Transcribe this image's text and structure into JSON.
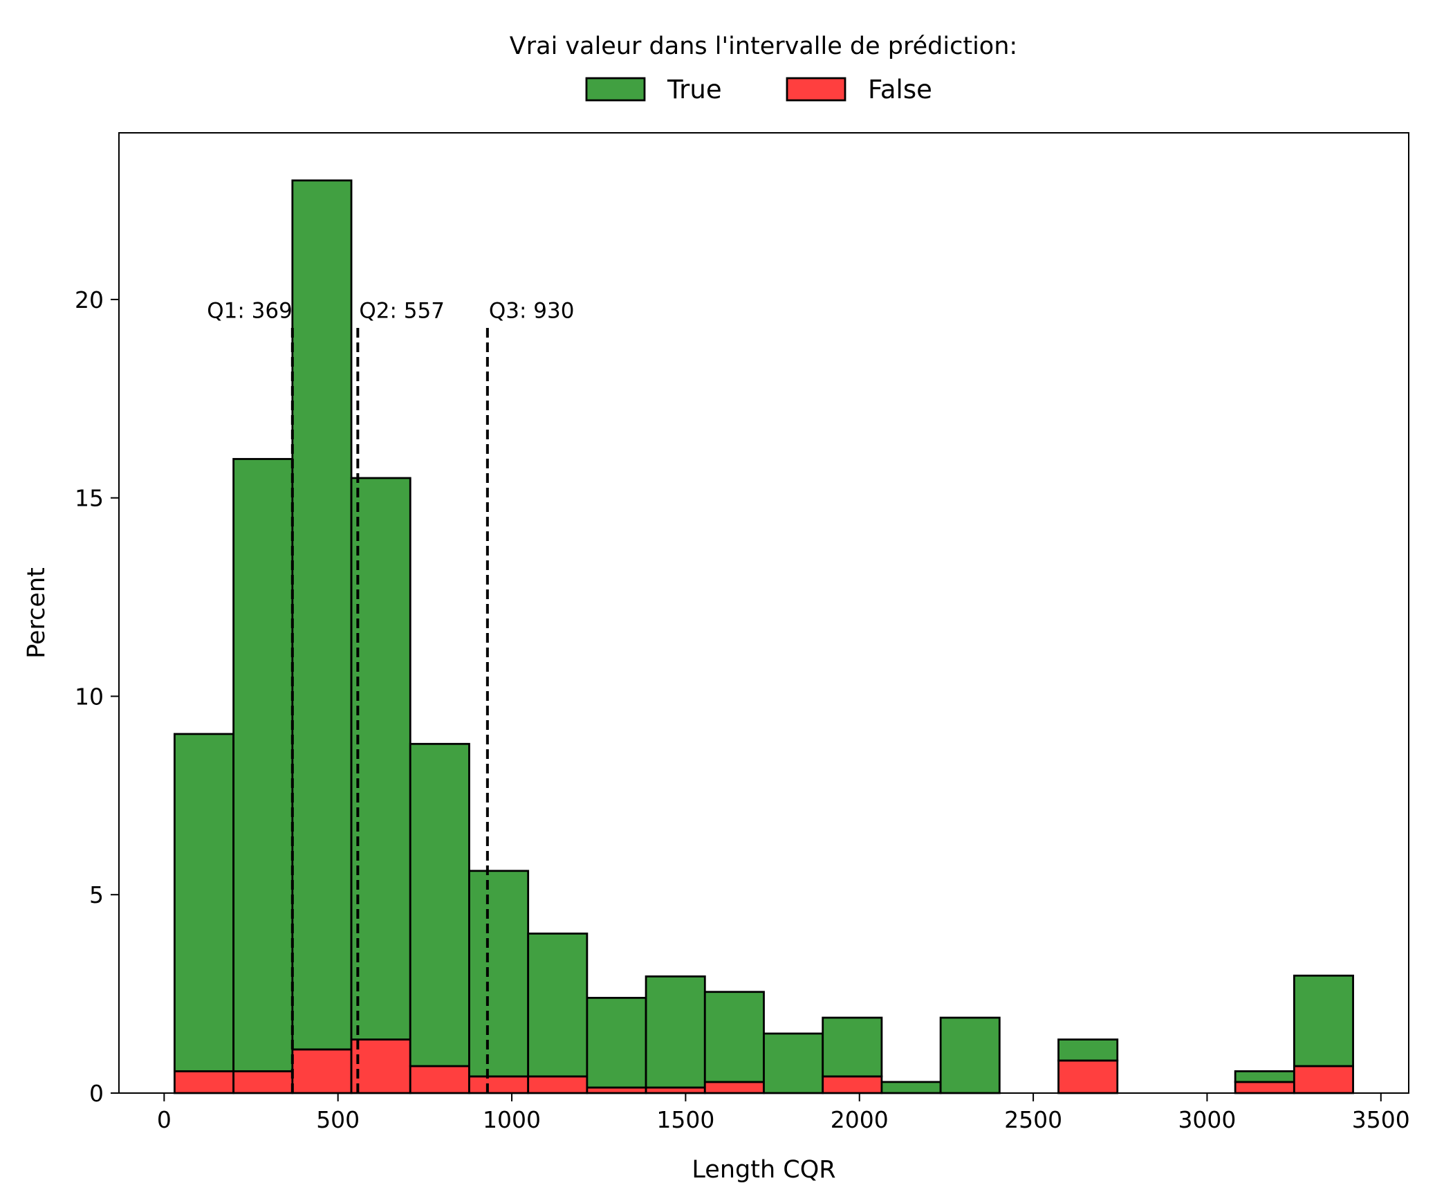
{
  "chart_data": {
    "type": "bar",
    "stacked": true,
    "xlabel": "Length CQR",
    "ylabel": "Percent",
    "xlim": [
      -130,
      3580
    ],
    "ylim": [
      0,
      24.2
    ],
    "x_ticks": [
      0,
      500,
      1000,
      1500,
      2000,
      2500,
      3000,
      3500
    ],
    "y_ticks": [
      0,
      5,
      10,
      15,
      20
    ],
    "legend": {
      "title": "Vrai valeur dans l'intervalle de prédiction:",
      "placement": "top-center",
      "entries": [
        {
          "label": "True",
          "color": "#41a041"
        },
        {
          "label": "False",
          "color": "#ff3f3f"
        }
      ]
    },
    "bins": {
      "edges": [
        30,
        199.5,
        369,
        538.5,
        708,
        877.5,
        1047,
        1216.5,
        1386,
        1555.5,
        1725,
        1894.5,
        2064,
        2233.5,
        2403,
        2572.5,
        2742,
        2911.5,
        3081,
        3250.5,
        3420
      ],
      "series": [
        {
          "name": "False",
          "color": "#ff3f3f",
          "values": [
            0.55,
            0.55,
            1.1,
            1.35,
            0.68,
            0.42,
            0.42,
            0.14,
            0.14,
            0.28,
            0,
            0.42,
            0,
            0,
            0,
            0.82,
            0,
            0,
            0.28,
            0.68
          ]
        },
        {
          "name": "True",
          "color": "#41a041",
          "values": [
            8.5,
            15.43,
            21.9,
            14.15,
            8.12,
            5.18,
            3.6,
            2.26,
            2.8,
            2.27,
            1.5,
            1.48,
            0.28,
            1.9,
            0,
            0.53,
            0,
            0,
            0.27,
            2.28
          ]
        }
      ]
    },
    "quartiles": [
      {
        "label": "Q1: 369",
        "x": 369,
        "y_top": 19.4
      },
      {
        "label": "Q2: 557",
        "x": 557,
        "y_top": 19.4
      },
      {
        "label": "Q3: 930",
        "x": 930,
        "y_top": 19.4
      }
    ],
    "grid": false
  }
}
